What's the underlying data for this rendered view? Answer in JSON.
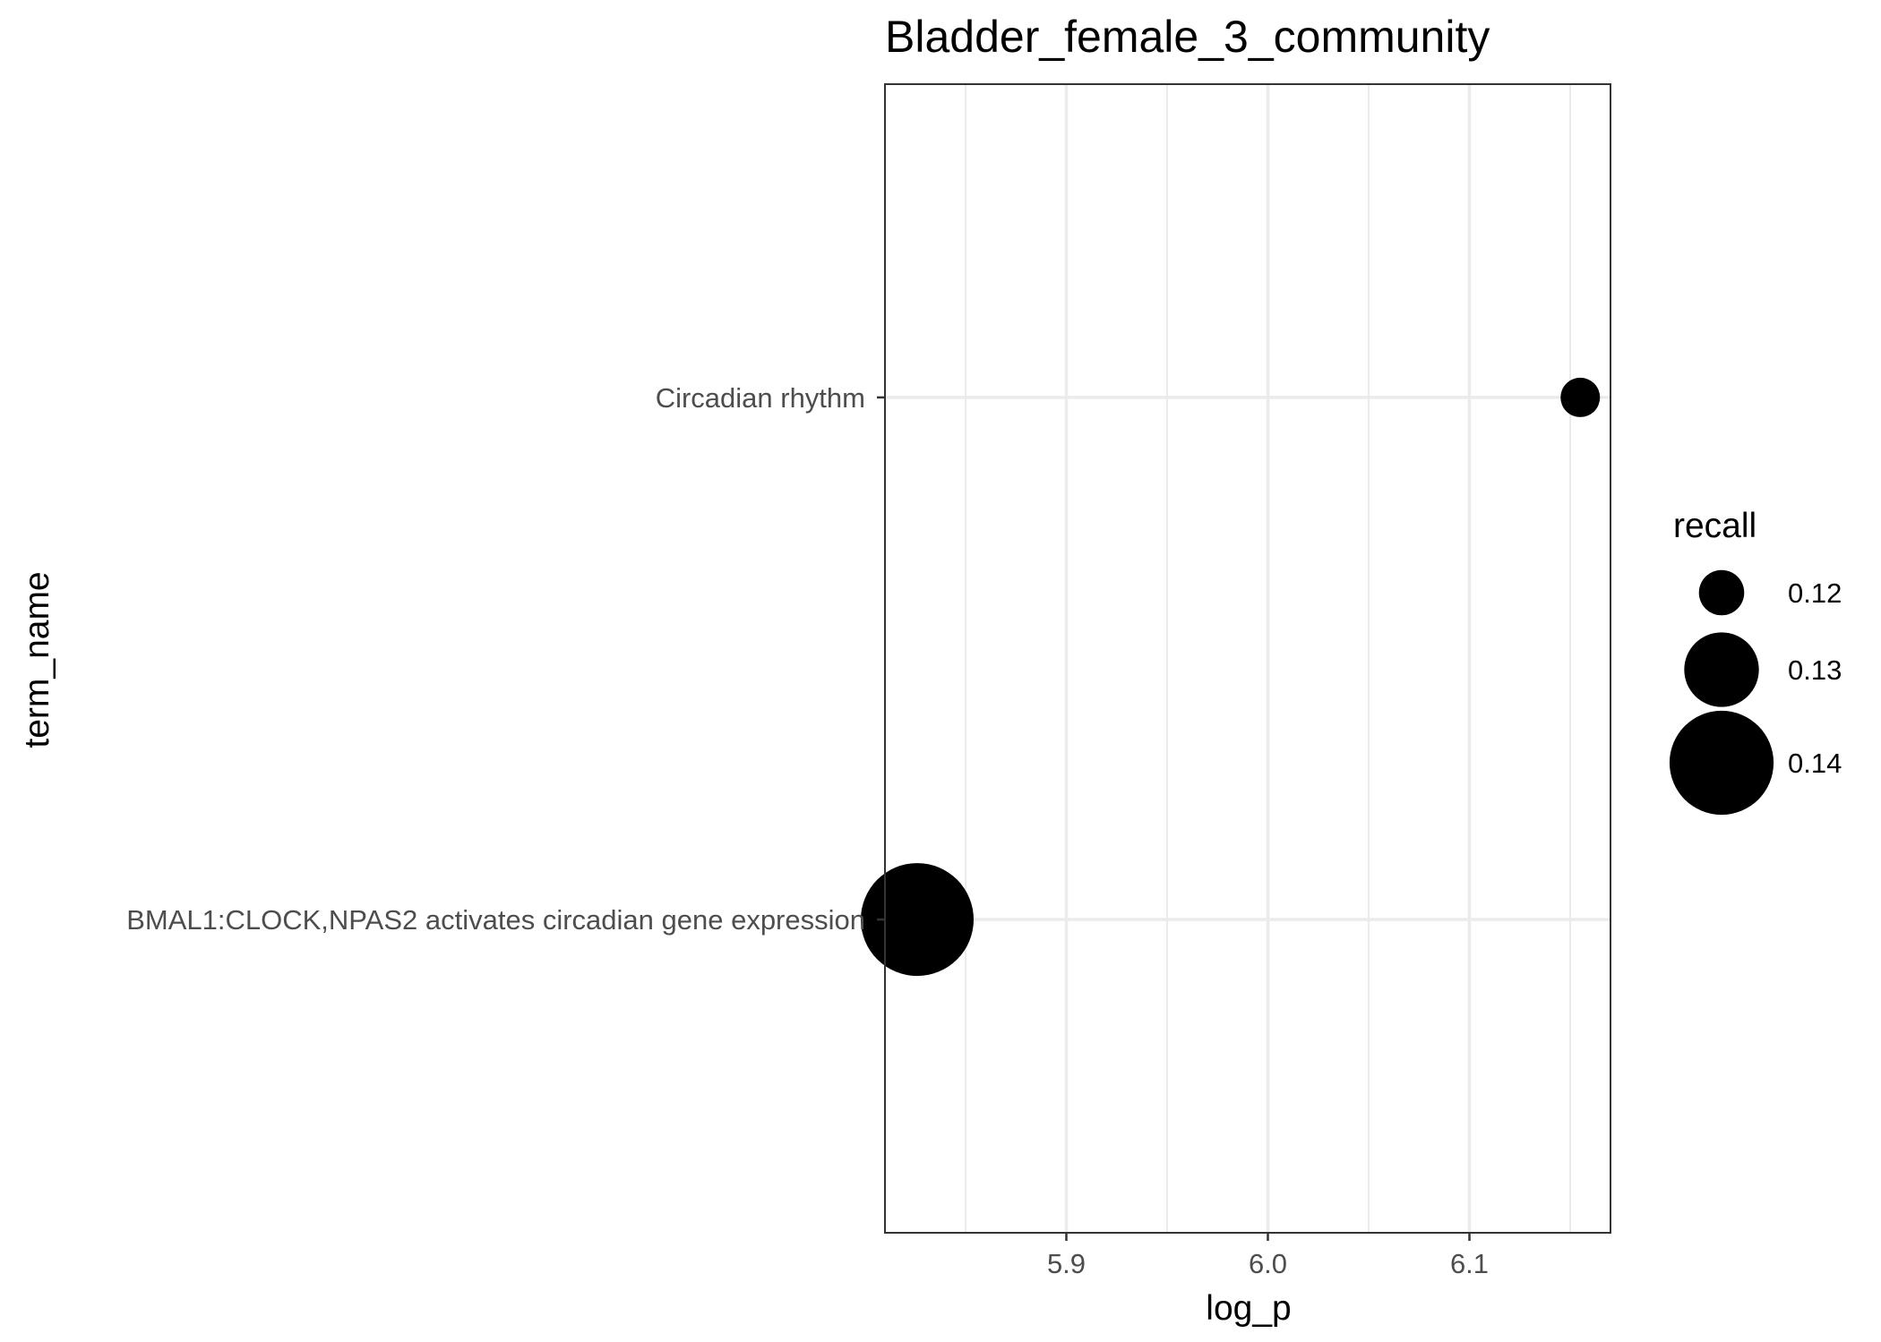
{
  "chart_data": {
    "type": "scatter",
    "title": "Bladder_female_3_community",
    "xlabel": "log_p",
    "ylabel": "term_name",
    "xlim": [
      5.81,
      6.17
    ],
    "x_ticks": [
      5.9,
      6.0,
      6.1
    ],
    "x_tick_labels": [
      "5.9",
      "6.0",
      "6.1"
    ],
    "categories": [
      "BMAL1:CLOCK,NPAS2 activates circadian gene expression",
      "Circadian rhythm"
    ],
    "points": [
      {
        "term_name": "Circadian rhythm",
        "log_p": 6.155,
        "recall": 0.118
      },
      {
        "term_name": "BMAL1:CLOCK,NPAS2 activates circadian gene expression",
        "log_p": 5.826,
        "recall": 0.143
      }
    ],
    "size_legend": {
      "title": "recall",
      "values": [
        0.12,
        0.13,
        0.14
      ],
      "labels": [
        "0.12",
        "0.13",
        "0.14"
      ]
    },
    "grid": true,
    "legend_position": "right",
    "colors": {
      "point": "#000000",
      "grid": "#ebebeb",
      "border": "#333333"
    }
  }
}
